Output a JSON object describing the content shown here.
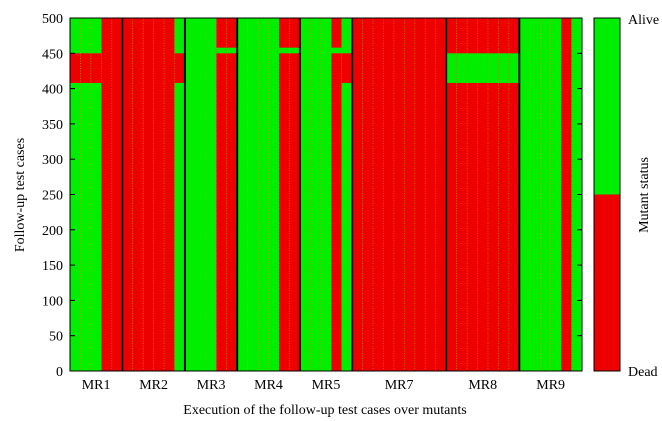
{
  "chart_data": {
    "type": "heatmap",
    "title": "",
    "xlabel": "Execution of the follow-up test cases over mutants",
    "ylabel": "Follow-up test cases",
    "ylim": [
      0,
      500
    ],
    "y_ticks": [
      "0",
      "50",
      "100",
      "150",
      "200",
      "250",
      "300",
      "350",
      "400",
      "450",
      "500"
    ],
    "categories": [
      "MR1",
      "MR2",
      "MR3",
      "MR4",
      "MR5",
      "MR7",
      "MR8",
      "MR9"
    ],
    "colorbar": {
      "title": "Mutant status",
      "top_label": "Alive",
      "bottom_label": "Dead",
      "alive_color": "#00ee00",
      "dead_color": "#ee0000",
      "split": 0.5
    },
    "groups": [
      {
        "name": "MR1",
        "columns": [
          {
            "base": "alive",
            "bands": [
              [
                408,
                450,
                "dead"
              ]
            ]
          },
          {
            "base": "alive",
            "bands": [
              [
                408,
                450,
                "dead"
              ]
            ]
          },
          {
            "base": "alive",
            "bands": [
              [
                408,
                450,
                "dead"
              ]
            ]
          },
          {
            "base": "dead",
            "bands": []
          },
          {
            "base": "dead",
            "bands": []
          }
        ]
      },
      {
        "name": "MR2",
        "columns": [
          {
            "base": "dead",
            "bands": []
          },
          {
            "base": "dead",
            "bands": []
          },
          {
            "base": "dead",
            "bands": []
          },
          {
            "base": "dead",
            "bands": []
          },
          {
            "base": "dead",
            "bands": []
          },
          {
            "base": "alive",
            "bands": [
              [
                408,
                450,
                "dead"
              ]
            ]
          }
        ]
      },
      {
        "name": "MR3",
        "columns": [
          {
            "base": "alive",
            "bands": []
          },
          {
            "base": "alive",
            "bands": []
          },
          {
            "base": "alive",
            "bands": []
          },
          {
            "base": "dead",
            "bands": [
              [
                450,
                458,
                "alive"
              ]
            ]
          },
          {
            "base": "dead",
            "bands": [
              [
                450,
                458,
                "alive"
              ]
            ]
          }
        ]
      },
      {
        "name": "MR4",
        "columns": [
          {
            "base": "alive",
            "bands": []
          },
          {
            "base": "alive",
            "bands": []
          },
          {
            "base": "alive",
            "bands": []
          },
          {
            "base": "alive",
            "bands": []
          },
          {
            "base": "dead",
            "bands": [
              [
                450,
                458,
                "alive"
              ]
            ]
          },
          {
            "base": "dead",
            "bands": [
              [
                450,
                458,
                "alive"
              ]
            ]
          }
        ]
      },
      {
        "name": "MR5",
        "columns": [
          {
            "base": "alive",
            "bands": []
          },
          {
            "base": "alive",
            "bands": []
          },
          {
            "base": "alive",
            "bands": []
          },
          {
            "base": "dead",
            "bands": [
              [
                450,
                458,
                "alive"
              ]
            ]
          },
          {
            "base": "alive",
            "bands": [
              [
                408,
                450,
                "dead"
              ]
            ]
          }
        ]
      },
      {
        "name": "MR7",
        "columns": [
          {
            "base": "dead",
            "bands": []
          },
          {
            "base": "dead",
            "bands": []
          },
          {
            "base": "dead",
            "bands": []
          },
          {
            "base": "dead",
            "bands": []
          },
          {
            "base": "dead",
            "bands": []
          },
          {
            "base": "dead",
            "bands": []
          },
          {
            "base": "dead",
            "bands": []
          },
          {
            "base": "dead",
            "bands": []
          },
          {
            "base": "dead",
            "bands": []
          }
        ]
      },
      {
        "name": "MR8",
        "columns": [
          {
            "base": "dead",
            "bands": [
              [
                408,
                450,
                "alive"
              ]
            ]
          },
          {
            "base": "dead",
            "bands": [
              [
                408,
                450,
                "alive"
              ]
            ]
          },
          {
            "base": "dead",
            "bands": [
              [
                408,
                450,
                "alive"
              ]
            ]
          },
          {
            "base": "dead",
            "bands": [
              [
                408,
                450,
                "alive"
              ]
            ]
          },
          {
            "base": "dead",
            "bands": [
              [
                408,
                450,
                "alive"
              ]
            ]
          },
          {
            "base": "dead",
            "bands": [
              [
                408,
                450,
                "alive"
              ]
            ]
          },
          {
            "base": "dead",
            "bands": [
              [
                408,
                450,
                "alive"
              ]
            ]
          }
        ]
      },
      {
        "name": "MR9",
        "columns": [
          {
            "base": "alive",
            "bands": []
          },
          {
            "base": "alive",
            "bands": []
          },
          {
            "base": "alive",
            "bands": []
          },
          {
            "base": "alive",
            "bands": []
          },
          {
            "base": "dead",
            "bands": []
          },
          {
            "base": "alive",
            "bands": []
          }
        ]
      }
    ]
  }
}
